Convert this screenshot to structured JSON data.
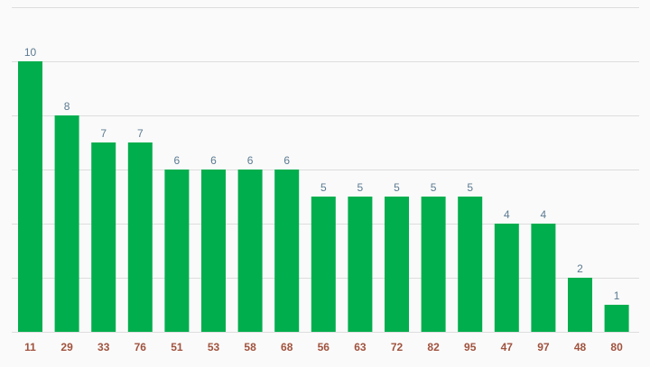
{
  "chart_data": {
    "type": "bar",
    "categories": [
      "11",
      "29",
      "33",
      "76",
      "51",
      "53",
      "58",
      "68",
      "56",
      "63",
      "72",
      "82",
      "95",
      "47",
      "97",
      "48",
      "80"
    ],
    "values": [
      10,
      8,
      7,
      7,
      6,
      6,
      6,
      6,
      5,
      5,
      5,
      5,
      5,
      4,
      4,
      2,
      1
    ],
    "title": "",
    "xlabel": "",
    "ylabel": "",
    "ylim": [
      0,
      12
    ],
    "grid": true,
    "data_labels": true,
    "legend": "none",
    "colors": {
      "bar": "#00ae4d",
      "data_label": "#5b7a91",
      "tick_label": "#a0523d",
      "grid": "#dddddd",
      "background": "#fafafa"
    }
  }
}
